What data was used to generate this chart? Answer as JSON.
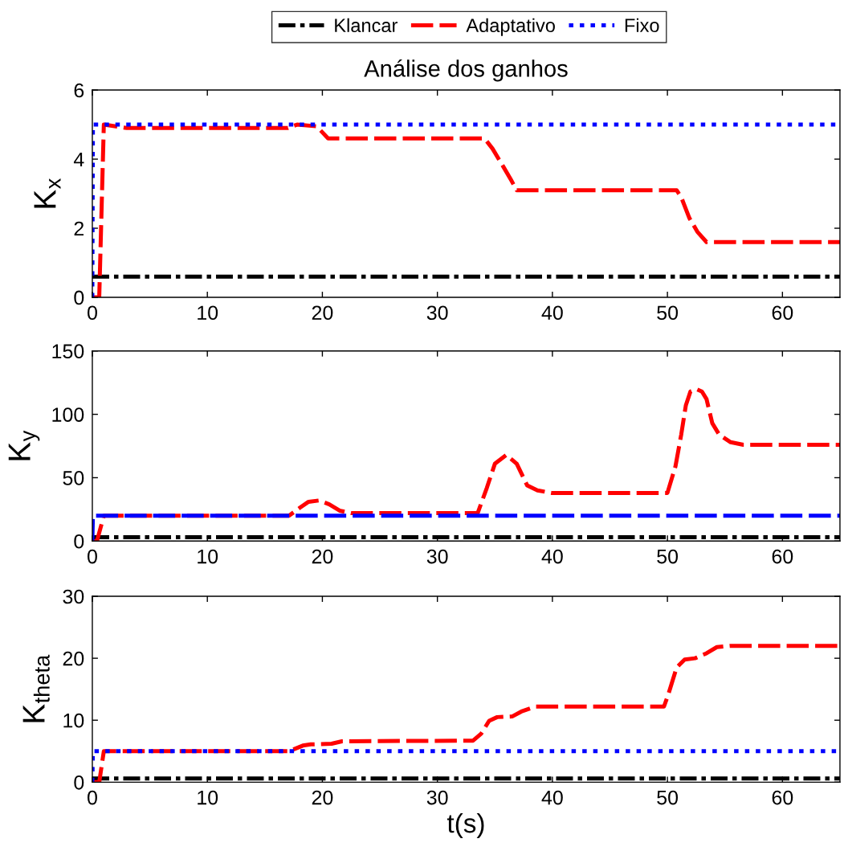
{
  "chart_data": [
    {
      "type": "line",
      "title": "Análise dos ganhos",
      "ylabel": "K$_{x}$",
      "xlim": [
        0,
        65
      ],
      "xticks": [
        0,
        10,
        20,
        30,
        40,
        50,
        60
      ],
      "ylim": [
        0,
        6
      ],
      "yticks": [
        0,
        2,
        4,
        6
      ],
      "legend": "top",
      "series": [
        {
          "name": "Klancar",
          "color": "#000000",
          "line_style": "dashdot",
          "x": [
            0,
            65
          ],
          "values": [
            0.6,
            0.6
          ]
        },
        {
          "name": "Adaptativo",
          "color": "#ff0000",
          "line_style": "dashed",
          "x": [
            0,
            0.6,
            1.0,
            3,
            17,
            17.8,
            19.5,
            20.5,
            34.1,
            34.8,
            35.7,
            36.4,
            36.9,
            50.8,
            51.2,
            51.9,
            52.6,
            53.4,
            65
          ],
          "values": [
            0,
            0,
            5,
            4.9,
            4.9,
            5,
            4.95,
            4.6,
            4.6,
            4.3,
            3.8,
            3.4,
            3.1,
            3.1,
            2.9,
            2.3,
            1.9,
            1.6,
            1.6
          ]
        },
        {
          "name": "Fixo",
          "color": "#0000ff",
          "line_style": "dotted",
          "x": [
            0,
            0.05,
            65
          ],
          "values": [
            0,
            5,
            5
          ]
        }
      ]
    },
    {
      "type": "line",
      "ylabel": "K$_{y}$",
      "xlim": [
        0,
        65
      ],
      "xticks": [
        0,
        10,
        20,
        30,
        40,
        50,
        60
      ],
      "ylim": [
        0,
        150
      ],
      "yticks": [
        0,
        50,
        100,
        150
      ],
      "series": [
        {
          "color": "#000000",
          "line_style": "dashdot",
          "x": [
            0,
            65
          ],
          "values": [
            3,
            3
          ]
        },
        {
          "color": "#ff0000",
          "line_style": "dashed",
          "x": [
            0,
            0.4,
            1.0,
            17.1,
            18,
            18.8,
            19.7,
            20.6,
            21.5,
            22.5,
            33.5,
            34.3,
            35.0,
            36.0,
            36.9,
            37.8,
            38.7,
            39.9,
            50.0,
            50.7,
            51.2,
            51.6,
            52.0,
            52.5,
            53.0,
            53.4,
            53.9,
            54.5,
            55.5,
            56.6,
            65
          ],
          "values": [
            0,
            0,
            20,
            20,
            26,
            31,
            32,
            29,
            24,
            22,
            22,
            42,
            61,
            68,
            61,
            44,
            40,
            38,
            38,
            59,
            84,
            107,
            118,
            120,
            118,
            112,
            93,
            84,
            78,
            76,
            76
          ]
        },
        {
          "color": "#0000ff",
          "line_style": "dashed",
          "x": [
            0,
            0.05,
            65
          ],
          "values": [
            0,
            20,
            20
          ]
        }
      ]
    },
    {
      "type": "line",
      "ylabel": "K$_{theta}$",
      "xlabel": "t(s)",
      "xlim": [
        0,
        65
      ],
      "xticks": [
        0,
        10,
        20,
        30,
        40,
        50,
        60
      ],
      "ylim": [
        0,
        30
      ],
      "yticks": [
        0,
        10,
        20,
        30
      ],
      "series": [
        {
          "color": "#000000",
          "line_style": "dashdot",
          "x": [
            0,
            65
          ],
          "values": [
            0.6,
            0.6
          ]
        },
        {
          "color": "#ff0000",
          "line_style": "dashed",
          "x": [
            0,
            0.6,
            1.0,
            17.1,
            18.3,
            19.0,
            20.8,
            21.7,
            33.1,
            33.8,
            34.5,
            35.2,
            36.5,
            37.3,
            38.5,
            49.7,
            50.1,
            50.8,
            51.5,
            52.4,
            53.4,
            54.3,
            55.5,
            65
          ],
          "values": [
            0,
            0,
            5,
            5,
            5.9,
            6.1,
            6.2,
            6.6,
            6.7,
            7.8,
            9.9,
            10.5,
            10.6,
            11.4,
            12.2,
            12.2,
            14.3,
            18.5,
            19.8,
            20,
            20.8,
            21.8,
            22,
            22
          ]
        },
        {
          "color": "#0000ff",
          "line_style": "dotted",
          "x": [
            0,
            0.05,
            65
          ],
          "values": [
            0,
            5,
            5
          ]
        }
      ]
    }
  ]
}
